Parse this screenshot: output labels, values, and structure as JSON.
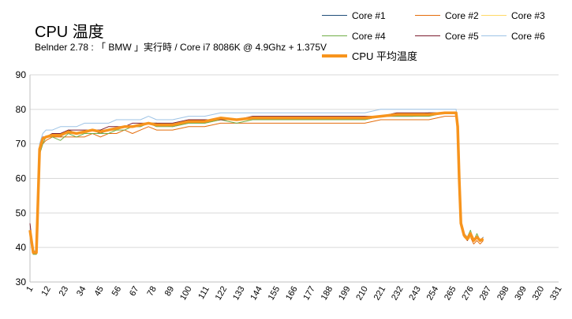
{
  "chart_data": {
    "type": "line",
    "title": "CPU 温度",
    "subtitle": "Belnder 2.78 : 「 BMW 」実行時 / Core i7 8086K @ 4.9Ghz + 1.375V",
    "xlabel": "",
    "ylabel": "",
    "ylim": [
      30,
      90
    ],
    "yticks": [
      30,
      40,
      50,
      60,
      70,
      80,
      90
    ],
    "xlim": [
      1,
      331
    ],
    "xticks": [
      1,
      12,
      23,
      34,
      45,
      56,
      67,
      78,
      89,
      100,
      111,
      122,
      133,
      144,
      155,
      166,
      177,
      188,
      199,
      210,
      221,
      232,
      243,
      254,
      265,
      276,
      287,
      298,
      309,
      320,
      331
    ],
    "grid": true,
    "legend_position": "top-right",
    "series": [
      {
        "name": "Core #1",
        "color": "#1f4e79",
        "x": [
          1,
          3,
          5,
          7,
          9,
          11,
          15,
          20,
          25,
          30,
          35,
          40,
          45,
          50,
          55,
          60,
          65,
          70,
          75,
          80,
          90,
          100,
          110,
          120,
          130,
          140,
          150,
          160,
          170,
          180,
          190,
          200,
          210,
          220,
          230,
          240,
          250,
          260,
          267,
          268,
          269,
          270,
          272,
          274,
          276,
          278,
          280,
          282,
          284
        ],
        "y": [
          45,
          39,
          39,
          68,
          71,
          72,
          73,
          72,
          74,
          73,
          73,
          74,
          73,
          74,
          74,
          75,
          75,
          75,
          76,
          76,
          75,
          76,
          76,
          77,
          77,
          77,
          77,
          77,
          77,
          77,
          77,
          77,
          77,
          78,
          78,
          78,
          79,
          79,
          79,
          75,
          60,
          47,
          44,
          43,
          44,
          42,
          43,
          42,
          43
        ]
      },
      {
        "name": "Core #2",
        "color": "#e46c0a",
        "x": [
          1,
          3,
          5,
          7,
          9,
          11,
          15,
          20,
          25,
          30,
          35,
          40,
          45,
          50,
          55,
          60,
          65,
          70,
          75,
          80,
          90,
          100,
          110,
          120,
          130,
          140,
          150,
          160,
          170,
          180,
          190,
          200,
          210,
          220,
          230,
          240,
          250,
          260,
          267,
          268,
          269,
          270,
          272,
          274,
          276,
          278,
          280,
          282,
          284
        ],
        "y": [
          44,
          38,
          38,
          67,
          70,
          71,
          72,
          72,
          72,
          72,
          72,
          73,
          72,
          73,
          73,
          74,
          73,
          74,
          75,
          74,
          74,
          75,
          75,
          76,
          76,
          76,
          76,
          76,
          76,
          76,
          76,
          76,
          76,
          77,
          77,
          77,
          77,
          78,
          78,
          74,
          58,
          46,
          43,
          42,
          43,
          41,
          42,
          41,
          42
        ]
      },
      {
        "name": "Core #3",
        "color": "#ffd966",
        "x": [
          1,
          3,
          5,
          7,
          9,
          11,
          15,
          20,
          25,
          30,
          35,
          40,
          45,
          50,
          55,
          60,
          65,
          70,
          75,
          80,
          90,
          100,
          110,
          120,
          130,
          140,
          150,
          160,
          170,
          180,
          190,
          200,
          210,
          220,
          230,
          240,
          250,
          260,
          267,
          268,
          269,
          270,
          272,
          274,
          276,
          278,
          280,
          282,
          284
        ],
        "y": [
          44,
          38,
          38,
          68,
          71,
          72,
          73,
          73,
          73,
          73,
          73,
          74,
          74,
          74,
          74,
          75,
          75,
          75,
          76,
          76,
          75,
          76,
          76,
          77,
          77,
          77,
          77,
          77,
          77,
          77,
          77,
          77,
          77,
          78,
          78,
          78,
          78,
          79,
          79,
          75,
          59,
          46,
          43,
          42,
          43,
          42,
          43,
          42,
          42
        ]
      },
      {
        "name": "Core #4",
        "color": "#70ad47",
        "x": [
          1,
          3,
          5,
          7,
          9,
          11,
          15,
          20,
          25,
          30,
          35,
          40,
          45,
          50,
          55,
          60,
          65,
          70,
          75,
          80,
          90,
          100,
          110,
          120,
          130,
          140,
          150,
          160,
          170,
          180,
          190,
          200,
          210,
          220,
          230,
          240,
          250,
          260,
          267,
          268,
          269,
          270,
          272,
          274,
          276,
          278,
          280,
          282,
          284
        ],
        "y": [
          44,
          38,
          38,
          67,
          70,
          72,
          72,
          71,
          73,
          72,
          73,
          73,
          73,
          73,
          74,
          74,
          75,
          75,
          76,
          75,
          75,
          76,
          76,
          77,
          76,
          77,
          77,
          77,
          77,
          77,
          77,
          77,
          77,
          78,
          78,
          78,
          78,
          79,
          79,
          75,
          59,
          47,
          44,
          43,
          45,
          42,
          44,
          42,
          43
        ]
      },
      {
        "name": "Core #5",
        "color": "#7b1c2e",
        "x": [
          1,
          3,
          5,
          7,
          9,
          11,
          15,
          20,
          25,
          30,
          35,
          40,
          45,
          50,
          55,
          60,
          65,
          70,
          75,
          80,
          90,
          100,
          110,
          120,
          130,
          140,
          150,
          160,
          170,
          180,
          190,
          200,
          210,
          220,
          230,
          240,
          250,
          260,
          267,
          268,
          269,
          270,
          272,
          274,
          276,
          278,
          280,
          282,
          284
        ],
        "y": [
          47,
          39,
          39,
          69,
          72,
          72,
          73,
          73,
          74,
          74,
          74,
          74,
          74,
          75,
          75,
          75,
          76,
          76,
          76,
          76,
          76,
          77,
          77,
          77,
          77,
          78,
          78,
          78,
          78,
          78,
          78,
          78,
          78,
          78,
          79,
          79,
          79,
          79,
          79,
          76,
          60,
          47,
          44,
          42,
          44,
          42,
          43,
          42,
          43
        ]
      },
      {
        "name": "Core #6",
        "color": "#9dc3e6",
        "x": [
          1,
          3,
          5,
          7,
          9,
          11,
          15,
          20,
          25,
          30,
          35,
          40,
          45,
          50,
          55,
          60,
          65,
          70,
          75,
          80,
          90,
          100,
          110,
          120,
          130,
          140,
          150,
          160,
          170,
          180,
          190,
          200,
          210,
          220,
          230,
          240,
          250,
          260,
          267,
          268,
          269,
          270,
          272,
          274,
          276,
          278,
          280,
          282,
          284
        ],
        "y": [
          45,
          39,
          39,
          70,
          73,
          74,
          74,
          75,
          75,
          75,
          76,
          76,
          76,
          76,
          77,
          77,
          77,
          77,
          78,
          77,
          77,
          78,
          78,
          79,
          79,
          79,
          79,
          79,
          79,
          79,
          79,
          79,
          79,
          80,
          80,
          80,
          80,
          80,
          80,
          76,
          61,
          47,
          44,
          43,
          44,
          42,
          43,
          42,
          43
        ]
      },
      {
        "name": "CPU 平均温度",
        "color": "#f7941d",
        "x": [
          1,
          3,
          5,
          7,
          9,
          11,
          15,
          20,
          25,
          30,
          35,
          40,
          45,
          50,
          55,
          60,
          65,
          70,
          75,
          80,
          90,
          100,
          110,
          120,
          130,
          140,
          150,
          160,
          170,
          180,
          190,
          200,
          210,
          220,
          230,
          240,
          250,
          260,
          267,
          268,
          269,
          270,
          272,
          274,
          276,
          278,
          280,
          282,
          284
        ],
        "y": [
          45,
          38.5,
          38.5,
          68.5,
          71.5,
          72,
          72.5,
          72.5,
          73.5,
          73,
          73.5,
          74,
          73.5,
          74,
          74.5,
          75,
          75,
          75.5,
          76,
          75.5,
          75.5,
          76.5,
          76.5,
          77.5,
          77,
          77.5,
          77.5,
          77.5,
          77.5,
          77.5,
          77.5,
          77.5,
          77.5,
          78,
          78.5,
          78.5,
          78.5,
          79,
          79,
          75,
          59.5,
          47,
          43.5,
          42.5,
          44,
          42,
          43,
          42,
          42.5
        ]
      }
    ]
  }
}
